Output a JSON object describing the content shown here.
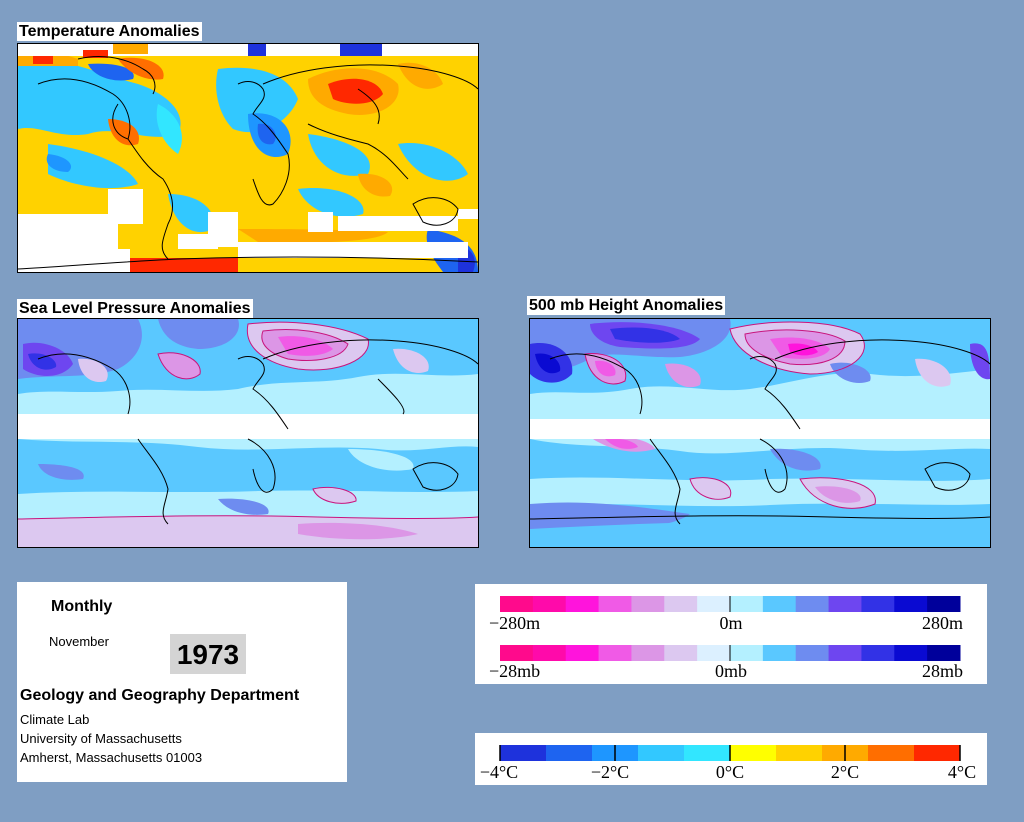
{
  "panels": {
    "temperature": {
      "title": "Temperature Anomalies"
    },
    "slp": {
      "title": "Sea Level Pressure Anomalies"
    },
    "height500": {
      "title": "500 mb Height Anomalies"
    }
  },
  "info": {
    "type": "Monthly",
    "month": "November",
    "year": "1973",
    "department": "Geology and Geography Department",
    "lines": [
      "Climate Lab",
      "University of Massachusetts",
      "Amherst, Massachusetts 01003"
    ]
  },
  "legends": {
    "height": {
      "min": "−280m",
      "mid": "0m",
      "max": "280m"
    },
    "pressure": {
      "min": "−28mb",
      "mid": "0mb",
      "max": "28mb"
    },
    "temperature": {
      "labels": [
        "−4°C",
        "−2°C",
        "0°C",
        "2°C",
        "4°C"
      ]
    }
  },
  "colors": {
    "background": "#7f9ec3",
    "anomaly_scale": [
      "#ff0a8c",
      "#ff0aaa",
      "#ff14dc",
      "#f05ae6",
      "#dc96e6",
      "#dcc8f0",
      "#dcf0ff",
      "#b4f0ff",
      "#5ac8ff",
      "#6e8cf0",
      "#6e46f0",
      "#3232e6",
      "#0a0ad2",
      "#00009b"
    ],
    "temperature_scale": [
      "#1e32dc",
      "#1e64f0",
      "#1e96ff",
      "#32c8ff",
      "#32e6ff",
      "#ffff00",
      "#ffd200",
      "#ffaa00",
      "#ff6e00",
      "#ff2800"
    ]
  }
}
